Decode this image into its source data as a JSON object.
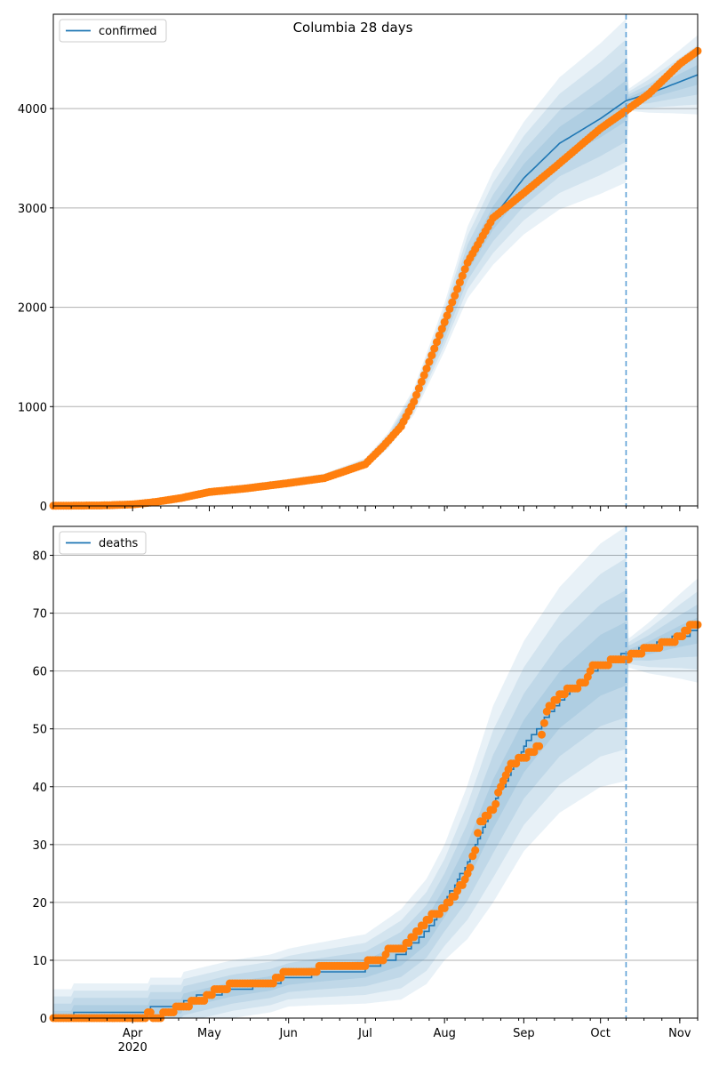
{
  "title": "Columbia 28 days",
  "colors": {
    "model": "#1f77b4",
    "observed": "#ff7f0e",
    "band": "#1f77b4",
    "grid": "#b0b0b0",
    "forecast_line": "#5c9fd6"
  },
  "x_axis": {
    "start": "2020-03-01",
    "end": "2020-11-08",
    "month_labels": [
      {
        "date": "2020-04-01",
        "label": "Apr"
      },
      {
        "date": "2020-05-01",
        "label": "May"
      },
      {
        "date": "2020-06-01",
        "label": "Jun"
      },
      {
        "date": "2020-07-01",
        "label": "Jul"
      },
      {
        "date": "2020-08-01",
        "label": "Aug"
      },
      {
        "date": "2020-09-01",
        "label": "Sep"
      },
      {
        "date": "2020-10-01",
        "label": "Oct"
      },
      {
        "date": "2020-11-01",
        "label": "Nov"
      }
    ],
    "year_label": "2020",
    "forecast_start": "2020-10-11"
  },
  "chart_data": [
    {
      "type": "line",
      "title": "Columbia 28 days",
      "legend": "confirmed",
      "legend_position": "top-left",
      "grid": true,
      "ylim": [
        0,
        4950
      ],
      "yticks": [
        0,
        1000,
        2000,
        3000,
        4000
      ],
      "model_curve": [
        [
          "2020-03-01",
          0
        ],
        [
          "2020-04-01",
          15
        ],
        [
          "2020-04-15",
          70
        ],
        [
          "2020-05-01",
          150
        ],
        [
          "2020-05-15",
          190
        ],
        [
          "2020-06-01",
          240
        ],
        [
          "2020-06-15",
          290
        ],
        [
          "2020-07-01",
          430
        ],
        [
          "2020-07-10",
          660
        ],
        [
          "2020-07-20",
          1050
        ],
        [
          "2020-08-01",
          1800
        ],
        [
          "2020-08-10",
          2450
        ],
        [
          "2020-08-20",
          2900
        ],
        [
          "2020-09-01",
          3300
        ],
        [
          "2020-09-15",
          3650
        ],
        [
          "2020-10-01",
          3900
        ],
        [
          "2020-10-11",
          4080
        ],
        [
          "2020-10-20",
          4150
        ],
        [
          "2020-11-01",
          4270
        ],
        [
          "2020-11-08",
          4340
        ]
      ],
      "band_halfwidths": [
        [
          "2020-03-01",
          0.1
        ],
        [
          "2020-07-01",
          0.1
        ],
        [
          "2020-08-01",
          0.13
        ],
        [
          "2020-08-20",
          0.16
        ],
        [
          "2020-10-11",
          0.2
        ],
        [
          "2020-10-12",
          0.025
        ],
        [
          "2020-11-08",
          0.09
        ]
      ],
      "observed": [
        [
          "2020-03-01",
          2
        ],
        [
          "2020-03-20",
          5
        ],
        [
          "2020-04-01",
          15
        ],
        [
          "2020-04-10",
          40
        ],
        [
          "2020-04-20",
          80
        ],
        [
          "2020-05-01",
          140
        ],
        [
          "2020-05-15",
          175
        ],
        [
          "2020-06-01",
          230
        ],
        [
          "2020-06-15",
          280
        ],
        [
          "2020-07-01",
          420
        ],
        [
          "2020-07-08",
          600
        ],
        [
          "2020-07-15",
          800
        ],
        [
          "2020-07-20",
          1050
        ],
        [
          "2020-08-01",
          1850
        ],
        [
          "2020-08-10",
          2450
        ],
        [
          "2020-08-20",
          2900
        ],
        [
          "2020-09-01",
          3150
        ],
        [
          "2020-09-15",
          3450
        ],
        [
          "2020-10-01",
          3800
        ],
        [
          "2020-10-11",
          3980
        ],
        [
          "2020-10-20",
          4150
        ],
        [
          "2020-11-01",
          4450
        ],
        [
          "2020-11-08",
          4580
        ]
      ]
    },
    {
      "type": "line",
      "legend": "deaths",
      "legend_position": "top-left",
      "grid": true,
      "ylim": [
        0,
        85
      ],
      "yticks": [
        0,
        10,
        20,
        30,
        40,
        50,
        60,
        70,
        80
      ],
      "model_curve": [
        [
          "2020-03-01",
          0
        ],
        [
          "2020-03-08",
          0
        ],
        [
          "2020-03-09",
          1
        ],
        [
          "2020-04-07",
          1
        ],
        [
          "2020-04-08",
          2
        ],
        [
          "2020-04-20",
          2
        ],
        [
          "2020-04-21",
          3
        ],
        [
          "2020-05-10",
          5
        ],
        [
          "2020-05-25",
          6
        ],
        [
          "2020-06-01",
          7
        ],
        [
          "2020-06-10",
          7.5
        ],
        [
          "2020-07-01",
          8.5
        ],
        [
          "2020-07-15",
          11
        ],
        [
          "2020-07-25",
          15
        ],
        [
          "2020-08-01",
          20
        ],
        [
          "2020-08-10",
          27
        ],
        [
          "2020-08-20",
          37
        ],
        [
          "2020-09-01",
          47
        ],
        [
          "2020-09-15",
          55
        ],
        [
          "2020-10-01",
          61
        ],
        [
          "2020-10-11",
          63
        ],
        [
          "2020-10-20",
          64
        ],
        [
          "2020-11-01",
          66
        ],
        [
          "2020-11-08",
          67
        ]
      ],
      "band_halfwidths": [
        [
          "2020-03-01",
          5
        ],
        [
          "2020-06-01",
          5
        ],
        [
          "2020-07-01",
          6
        ],
        [
          "2020-08-01",
          10
        ],
        [
          "2020-08-20",
          17
        ],
        [
          "2020-10-11",
          22
        ],
        [
          "2020-10-12",
          2.5
        ],
        [
          "2020-11-08",
          9
        ]
      ],
      "observed": [
        [
          "2020-03-01",
          0
        ],
        [
          "2020-04-06",
          0
        ],
        [
          "2020-04-07",
          1
        ],
        [
          "2020-04-10",
          0
        ],
        [
          "2020-04-15",
          1
        ],
        [
          "2020-04-20",
          2
        ],
        [
          "2020-04-28",
          3
        ],
        [
          "2020-05-01",
          4
        ],
        [
          "2020-05-05",
          5
        ],
        [
          "2020-05-12",
          6
        ],
        [
          "2020-05-25",
          6
        ],
        [
          "2020-05-28",
          7
        ],
        [
          "2020-06-01",
          8
        ],
        [
          "2020-06-25",
          9
        ],
        [
          "2020-07-08",
          10
        ],
        [
          "2020-07-10",
          12
        ],
        [
          "2020-07-15",
          12
        ],
        [
          "2020-07-20",
          14
        ],
        [
          "2020-07-25",
          17
        ],
        [
          "2020-08-01",
          19
        ],
        [
          "2020-08-05",
          21
        ],
        [
          "2020-08-10",
          25
        ],
        [
          "2020-08-13",
          29
        ],
        [
          "2020-08-15",
          34
        ],
        [
          "2020-08-20",
          36
        ],
        [
          "2020-08-23",
          40
        ],
        [
          "2020-08-27",
          44
        ],
        [
          "2020-09-01",
          45
        ],
        [
          "2020-09-07",
          47
        ],
        [
          "2020-09-10",
          53
        ],
        [
          "2020-09-15",
          56
        ],
        [
          "2020-09-25",
          58
        ],
        [
          "2020-09-28",
          61
        ],
        [
          "2020-10-11",
          62
        ],
        [
          "2020-10-15",
          63
        ],
        [
          "2020-10-20",
          64
        ],
        [
          "2020-10-30",
          65
        ],
        [
          "2020-11-01",
          66
        ],
        [
          "2020-11-06",
          68
        ],
        [
          "2020-11-08",
          68
        ]
      ]
    }
  ]
}
